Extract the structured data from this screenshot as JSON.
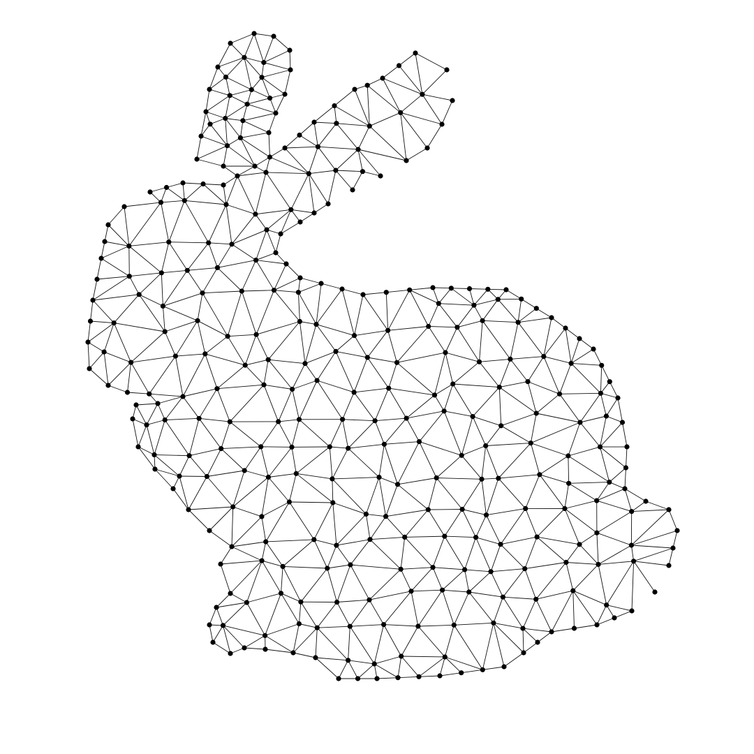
{
  "figure": {
    "subject": "bunny-wireframe-mesh",
    "background_color": "#ffffff",
    "edge_color": "#111111",
    "vertex_color": "#000000"
  }
}
